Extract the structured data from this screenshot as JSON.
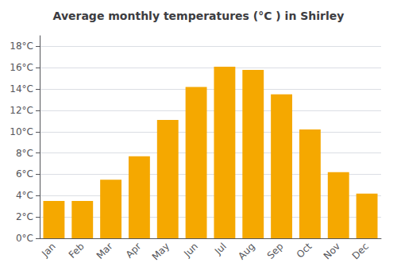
{
  "chart_data": {
    "type": "bar",
    "title": "Average monthly temperatures (°C ) in Shirley",
    "categories": [
      "Jan",
      "Feb",
      "Mar",
      "Apr",
      "May",
      "Jun",
      "Jul",
      "Aug",
      "Sep",
      "Oct",
      "Nov",
      "Dec"
    ],
    "values": [
      3.5,
      3.5,
      5.5,
      7.7,
      11.1,
      14.2,
      16.1,
      15.8,
      13.5,
      10.2,
      6.2,
      4.2
    ],
    "color": "#F5A800",
    "ylim": [
      0,
      19
    ],
    "yticks": [
      {
        "value": 0,
        "label": "0°C"
      },
      {
        "value": 2,
        "label": "2°C"
      },
      {
        "value": 4,
        "label": "4°C"
      },
      {
        "value": 6,
        "label": "6°C"
      },
      {
        "value": 8,
        "label": "8°C"
      },
      {
        "value": 10,
        "label": "10°C"
      },
      {
        "value": 12,
        "label": "12°C"
      },
      {
        "value": 14,
        "label": "14°C"
      },
      {
        "value": 16,
        "label": "16°C"
      },
      {
        "value": 18,
        "label": "18°C"
      }
    ],
    "grid": true
  }
}
